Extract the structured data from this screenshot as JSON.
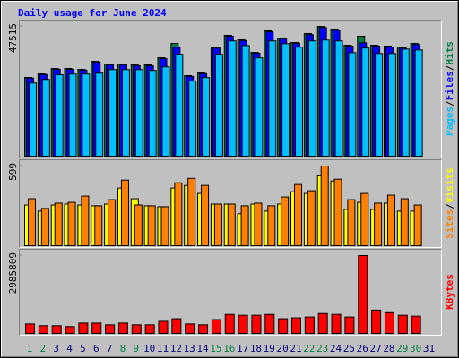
{
  "chart_data": {
    "type": "bar",
    "title": "Daily usage for June 2024",
    "title_color": "#0000ff",
    "categories": [
      "1",
      "2",
      "3",
      "4",
      "5",
      "6",
      "7",
      "8",
      "9",
      "10",
      "11",
      "12",
      "13",
      "14",
      "15",
      "16",
      "17",
      "18",
      "19",
      "20",
      "21",
      "22",
      "23",
      "24",
      "25",
      "26",
      "27",
      "28",
      "29",
      "30",
      "31"
    ],
    "category_colors": [
      "#008040",
      "#008040",
      "#000080",
      "#000080",
      "#000080",
      "#000080",
      "#000080",
      "#008040",
      "#008040",
      "#000080",
      "#000080",
      "#000080",
      "#000080",
      "#000080",
      "#008040",
      "#008040",
      "#000080",
      "#000080",
      "#000080",
      "#000080",
      "#000080",
      "#008040",
      "#008040",
      "#000080",
      "#000080",
      "#000080",
      "#000080",
      "#000080",
      "#008040",
      "#008040",
      "#000080"
    ],
    "legend_separator": "/",
    "panels": [
      {
        "ylim": [
          0,
          47515
        ],
        "yticks": [
          47515
        ],
        "series": [
          {
            "name": "Hits",
            "color": "#008040",
            "values": [
              28838,
              30148,
              32115,
              32115,
              31787,
              34736,
              33753,
              33753,
              33425,
              33425,
              36047,
              41290,
              29493,
              30476,
              39979,
              44240,
              42601,
              38013,
              45878,
              43256,
              41618,
              44895,
              47515,
              46533,
              40635,
              43912,
              40635,
              40307,
              39979,
              41290,
              null
            ]
          },
          {
            "name": "Files",
            "color": "#0000ff",
            "values": [
              28600,
              29900,
              31800,
              31800,
              31500,
              34400,
              33400,
              33400,
              33100,
              33100,
              35700,
              39900,
              29200,
              30200,
              39600,
              43900,
              42300,
              37700,
              45500,
              42900,
              41300,
              44500,
              47100,
              46100,
              40300,
              41500,
              40300,
              40000,
              39600,
              40900,
              null
            ]
          },
          {
            "name": "Pages",
            "color": "#00c0ff",
            "values": [
              26800,
              28100,
              29800,
              30100,
              30100,
              30400,
              31700,
              31700,
              31700,
              31400,
              32700,
              37300,
              27500,
              28800,
              37300,
              42200,
              40500,
              36000,
              42200,
              41200,
              39900,
              42200,
              42500,
              42200,
              37900,
              39600,
              37600,
              37600,
              39200,
              38900,
              null
            ]
          }
        ]
      },
      {
        "ylim": [
          0,
          599
        ],
        "yticks": [
          599
        ],
        "series": [
          {
            "name": "Visits",
            "color": "#ffff00",
            "values": [
              306,
              260,
              306,
              313,
              306,
              300,
              313,
              433,
              353,
              300,
              293,
              433,
              453,
              393,
              313,
              313,
              240,
              313,
              260,
              313,
              406,
              393,
              526,
              486,
              273,
              326,
              273,
              320,
              260,
              260,
              null
            ]
          },
          {
            "name": "Sites",
            "color": "#ff8000",
            "values": [
              353,
              280,
              320,
              326,
              373,
              300,
              346,
              493,
              306,
              300,
              293,
              473,
              506,
              453,
              313,
              313,
              300,
              320,
              300,
              366,
              460,
              413,
              599,
              500,
              346,
              393,
              320,
              380,
              353,
              306,
              null
            ]
          }
        ]
      },
      {
        "ylim": [
          0,
          2985809
        ],
        "yticks": [
          2985809
        ],
        "series": [
          {
            "name": "KBytes",
            "color": "#ff0000",
            "values": [
              364936,
              298584,
              298584,
              265408,
              398112,
              398112,
              331760,
              398112,
              331760,
              331760,
              464464,
              564000,
              364936,
              331760,
              531000,
              730000,
              697000,
              697000,
              730000,
              564000,
              597000,
              630000,
              763000,
              730000,
              630000,
              2985809,
              896000,
              796000,
              697000,
              663000,
              null
            ]
          }
        ]
      }
    ]
  }
}
